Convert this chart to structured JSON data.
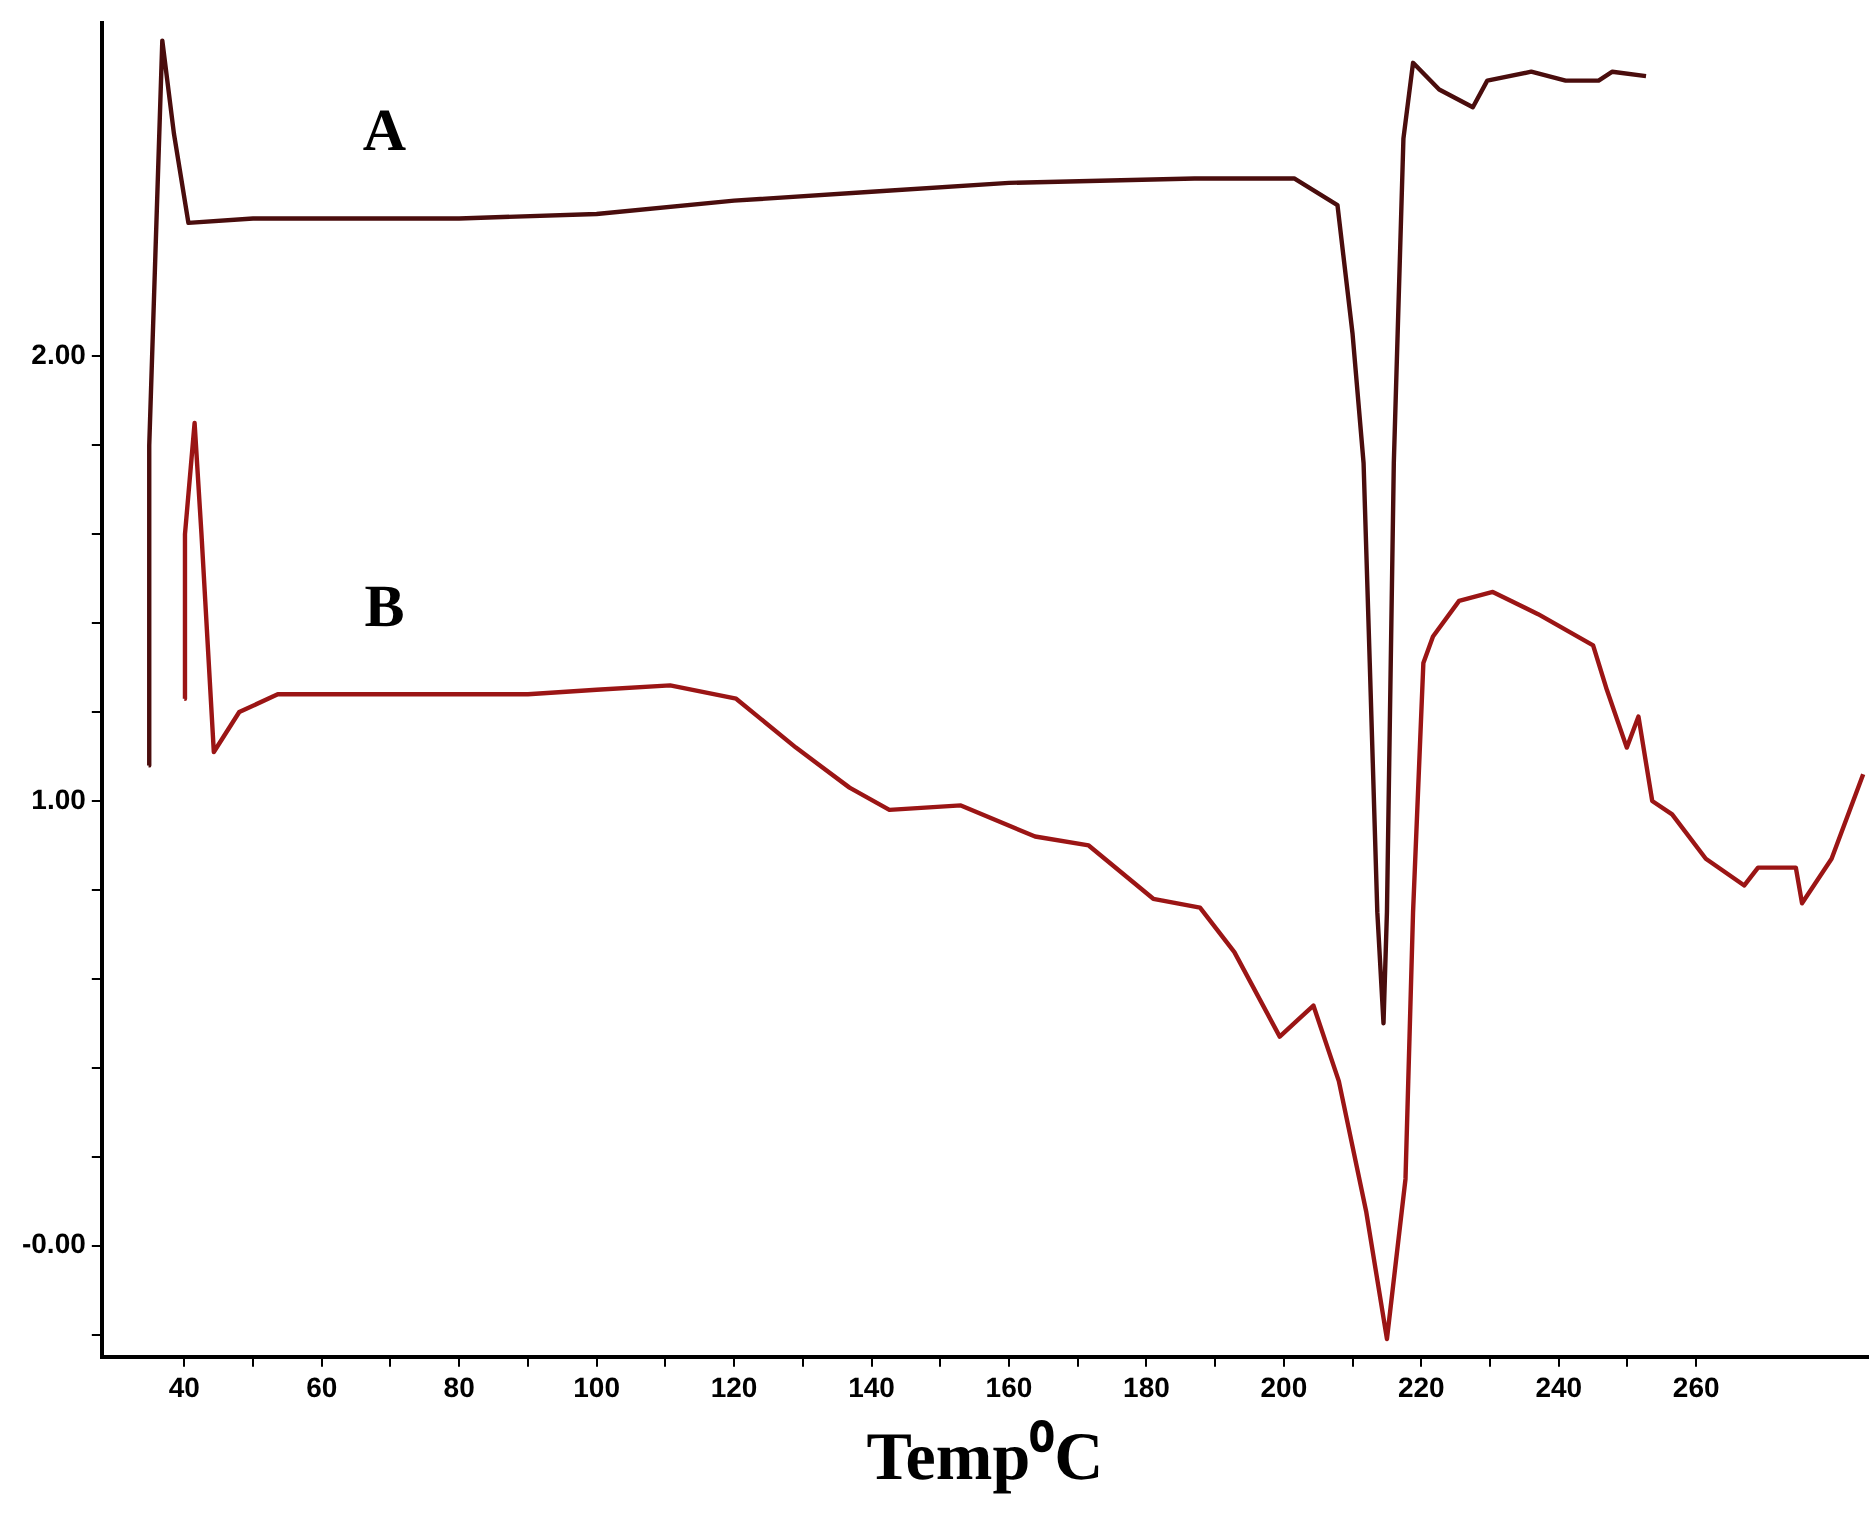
{
  "chart_data": {
    "type": "line",
    "xlabel": "Temp⁰C",
    "xlim": [
      28,
      285
    ],
    "ylim": [
      -0.25,
      2.75
    ],
    "xticks": [
      40,
      {
        "value": 50,
        "label": null
      },
      60,
      {
        "value": 70,
        "label": null
      },
      80,
      {
        "value": 90,
        "label": null
      },
      100,
      {
        "value": 110,
        "label": null
      },
      120,
      {
        "value": 130,
        "label": null
      },
      140,
      {
        "value": 150,
        "label": null
      },
      160,
      {
        "value": 170,
        "label": null
      },
      180,
      {
        "value": 190,
        "label": null
      },
      200,
      {
        "value": 210,
        "label": null
      },
      220,
      {
        "value": 230,
        "label": null
      },
      240,
      {
        "value": 250,
        "label": null
      },
      260
    ],
    "yticks": [
      {
        "value": -0.2,
        "label": null
      },
      {
        "value": 0,
        "label": "-0.00"
      },
      {
        "value": 0.2,
        "label": null
      },
      {
        "value": 0.4,
        "label": null
      },
      {
        "value": 0.6,
        "label": null
      },
      {
        "value": 0.8,
        "label": null
      },
      {
        "value": 1,
        "label": "1.00"
      },
      {
        "value": 1.2,
        "label": null
      },
      {
        "value": 1.4,
        "label": null
      },
      {
        "value": 1.6,
        "label": null
      },
      {
        "value": 1.8,
        "label": null
      },
      {
        "value": 2,
        "label": "2.00"
      }
    ],
    "grid": false,
    "legend": false,
    "marker": "none",
    "line_style": "solid",
    "series": [
      {
        "name": "A",
        "color": "#4a0d0d",
        "x": [
          34.8,
          34.9,
          36.8,
          38.5,
          40.6,
          50,
          60,
          80,
          100,
          120,
          140,
          160,
          187,
          201.5,
          207.8,
          210,
          211.6,
          212.5,
          213.6,
          214.5,
          215,
          216,
          217.4,
          218.8,
          222.6,
          227.5,
          229.6,
          236,
          241,
          245.8,
          247.8,
          252.7
        ],
        "values": [
          1.08,
          1.8,
          2.71,
          2.5,
          2.3,
          2.31,
          2.31,
          2.31,
          2.32,
          2.35,
          2.37,
          2.39,
          2.4,
          2.4,
          2.34,
          2.05,
          1.76,
          1.31,
          0.75,
          0.5,
          0.75,
          1.76,
          2.49,
          2.66,
          2.6,
          2.56,
          2.62,
          2.64,
          2.62,
          2.62,
          2.64,
          2.63
        ]
      },
      {
        "name": "B",
        "color": "#9b1515",
        "x": [
          40,
          40.1,
          41.5,
          42.5,
          44.3,
          48,
          53.6,
          70,
          90,
          100,
          110.7,
          120.3,
          129,
          136.8,
          142.6,
          153,
          163.8,
          171.6,
          181,
          187.8,
          192.8,
          199.4,
          204.3,
          208,
          212,
          215,
          217.7,
          218.8,
          220.3,
          221.7,
          225.5,
          230.4,
          237,
          245,
          247,
          249.9,
          251.6,
          253.6,
          256.5,
          261.4,
          267,
          269,
          274.5,
          275.4,
          279.7,
          284.3
        ],
        "values": [
          1.23,
          1.6,
          1.85,
          1.6,
          1.11,
          1.2,
          1.24,
          1.24,
          1.24,
          1.25,
          1.26,
          1.23,
          1.12,
          1.03,
          0.98,
          0.99,
          0.92,
          0.9,
          0.78,
          0.76,
          0.66,
          0.47,
          0.54,
          0.37,
          0.075,
          -0.21,
          0.15,
          0.75,
          1.31,
          1.37,
          1.45,
          1.47,
          1.42,
          1.35,
          1.25,
          1.12,
          1.19,
          1.0,
          0.97,
          0.87,
          0.81,
          0.85,
          0.85,
          0.77,
          0.87,
          1.06
        ]
      }
    ]
  }
}
